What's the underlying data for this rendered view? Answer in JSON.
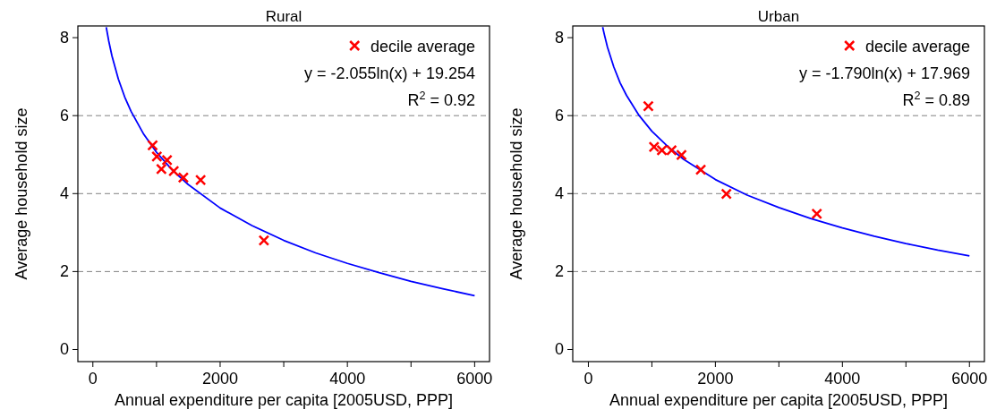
{
  "chart_data": [
    {
      "type": "scatter",
      "title": "Rural",
      "xlabel": "Annual expenditure per capita [2005USD, PPP]",
      "ylabel": "Average household size",
      "xlim": [
        -236,
        6234
      ],
      "ylim": [
        -0.31,
        8.3
      ],
      "xticks": [
        0,
        {
          "value": 1000,
          "label": null
        },
        2000,
        {
          "value": 3000,
          "label": null
        },
        4000,
        {
          "value": 5000,
          "label": null
        },
        6000
      ],
      "yticks": [
        0,
        2,
        4,
        6,
        8
      ],
      "legend": "top right",
      "marker": "cross",
      "annotations": [
        "y = -2.055ln(x) + 19.254",
        "R$^{2}$ = 0.92"
      ],
      "ref_lines": [
        {
          "axis": "y",
          "value": 2,
          "color": "#808080",
          "line_style": "dashed"
        },
        {
          "axis": "y",
          "value": 4,
          "color": "#808080",
          "line_style": "dashed"
        },
        {
          "axis": "y",
          "value": 6,
          "color": "#808080",
          "line_style": "dashed"
        }
      ],
      "series": [
        {
          "type": "line",
          "color": "#0000ff",
          "marker": "none",
          "line_style": "solid",
          "x": [
            210,
            250,
            300,
            400,
            500,
            600,
            800,
            1000,
            1250,
            1500,
            2000,
            2500,
            3000,
            3500,
            4000,
            4500,
            5000,
            5500,
            6000
          ],
          "values": [
            8.27,
            7.91,
            7.53,
            6.94,
            6.48,
            6.11,
            5.52,
            5.06,
            4.6,
            4.23,
            3.63,
            3.18,
            2.8,
            2.48,
            2.21,
            1.97,
            1.75,
            1.56,
            1.38
          ]
        },
        {
          "name": "decile average",
          "color": "#ff0000",
          "x": [
            939,
            1005,
            1166,
            1077,
            1271,
            1422,
            1693,
            2688
          ],
          "values": [
            5.24,
            4.95,
            4.86,
            4.63,
            4.58,
            4.41,
            4.35,
            2.8
          ]
        }
      ]
    },
    {
      "type": "scatter",
      "title": "Urban",
      "xlabel": "Annual expenditure per capita [2005USD, PPP]",
      "ylabel": "Average household size",
      "xlim": [
        -246,
        6236
      ],
      "ylim": [
        -0.31,
        8.3
      ],
      "xticks": [
        0,
        {
          "value": 1000,
          "label": null
        },
        2000,
        {
          "value": 3000,
          "label": null
        },
        4000,
        {
          "value": 5000,
          "label": null
        },
        6000
      ],
      "yticks": [
        0,
        2,
        4,
        6,
        8
      ],
      "legend": "top right",
      "marker": "cross",
      "annotations": [
        "y = -1.790ln(x) + 17.969",
        "R$^{2}$ = 0.89"
      ],
      "ref_lines": [
        {
          "axis": "y",
          "value": 2,
          "color": "#808080",
          "line_style": "dashed"
        },
        {
          "axis": "y",
          "value": 4,
          "color": "#808080",
          "line_style": "dashed"
        },
        {
          "axis": "y",
          "value": 6,
          "color": "#808080",
          "line_style": "dashed"
        }
      ],
      "series": [
        {
          "type": "line",
          "color": "#0000ff",
          "marker": "none",
          "line_style": "solid",
          "x": [
            225,
            250,
            300,
            400,
            500,
            600,
            800,
            1000,
            1250,
            1500,
            2000,
            2500,
            3000,
            3500,
            4000,
            4500,
            5000,
            5500,
            6000
          ],
          "values": [
            8.27,
            8.09,
            7.76,
            7.25,
            6.84,
            6.52,
            6.0,
            5.6,
            5.21,
            4.88,
            4.36,
            3.96,
            3.64,
            3.36,
            3.12,
            2.91,
            2.72,
            2.55,
            2.4
          ]
        },
        {
          "name": "decile average",
          "color": "#ff0000",
          "x": [
            944,
            1034,
            1158,
            1310,
            1466,
            1770,
            2173,
            3597
          ],
          "values": [
            6.24,
            5.2,
            5.11,
            5.11,
            4.99,
            4.61,
            3.99,
            3.48
          ]
        }
      ]
    }
  ]
}
